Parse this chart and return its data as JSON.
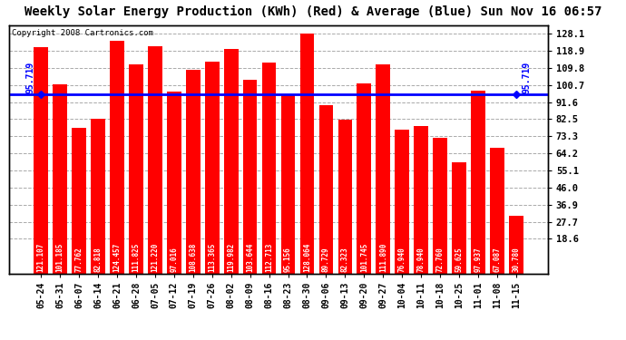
{
  "title": "Weekly Solar Energy Production (KWh) (Red) & Average (Blue) Sun Nov 16 06:57",
  "copyright": "Copyright 2008 Cartronics.com",
  "categories": [
    "05-24",
    "05-31",
    "06-07",
    "06-14",
    "06-21",
    "06-28",
    "07-05",
    "07-12",
    "07-19",
    "07-26",
    "08-02",
    "08-09",
    "08-16",
    "08-23",
    "08-30",
    "09-06",
    "09-13",
    "09-20",
    "09-27",
    "10-04",
    "10-11",
    "10-18",
    "10-25",
    "11-01",
    "11-08",
    "11-15"
  ],
  "values": [
    121.107,
    101.185,
    77.762,
    82.818,
    124.457,
    111.825,
    121.22,
    97.016,
    108.638,
    113.365,
    119.982,
    103.644,
    112.713,
    95.156,
    128.064,
    89.729,
    82.323,
    101.745,
    111.89,
    76.94,
    78.94,
    72.76,
    59.625,
    97.937,
    67.087,
    30.78
  ],
  "average": 95.719,
  "bar_color": "#FF0000",
  "avg_line_color": "#0000FF",
  "background_color": "#FFFFFF",
  "plot_bg_color": "#FFFFFF",
  "grid_color": "#AAAAAA",
  "yticks": [
    18.6,
    27.7,
    36.9,
    46.0,
    55.1,
    64.2,
    73.3,
    82.5,
    91.6,
    100.7,
    109.8,
    118.9,
    128.1
  ],
  "ylim_min": 0,
  "ylim_max": 132.5,
  "avg_label": "95.719",
  "title_fontsize": 10,
  "copyright_fontsize": 6.5,
  "tick_fontsize": 7,
  "ylabel_right_fontsize": 7.5,
  "value_label_fontsize": 5.5
}
